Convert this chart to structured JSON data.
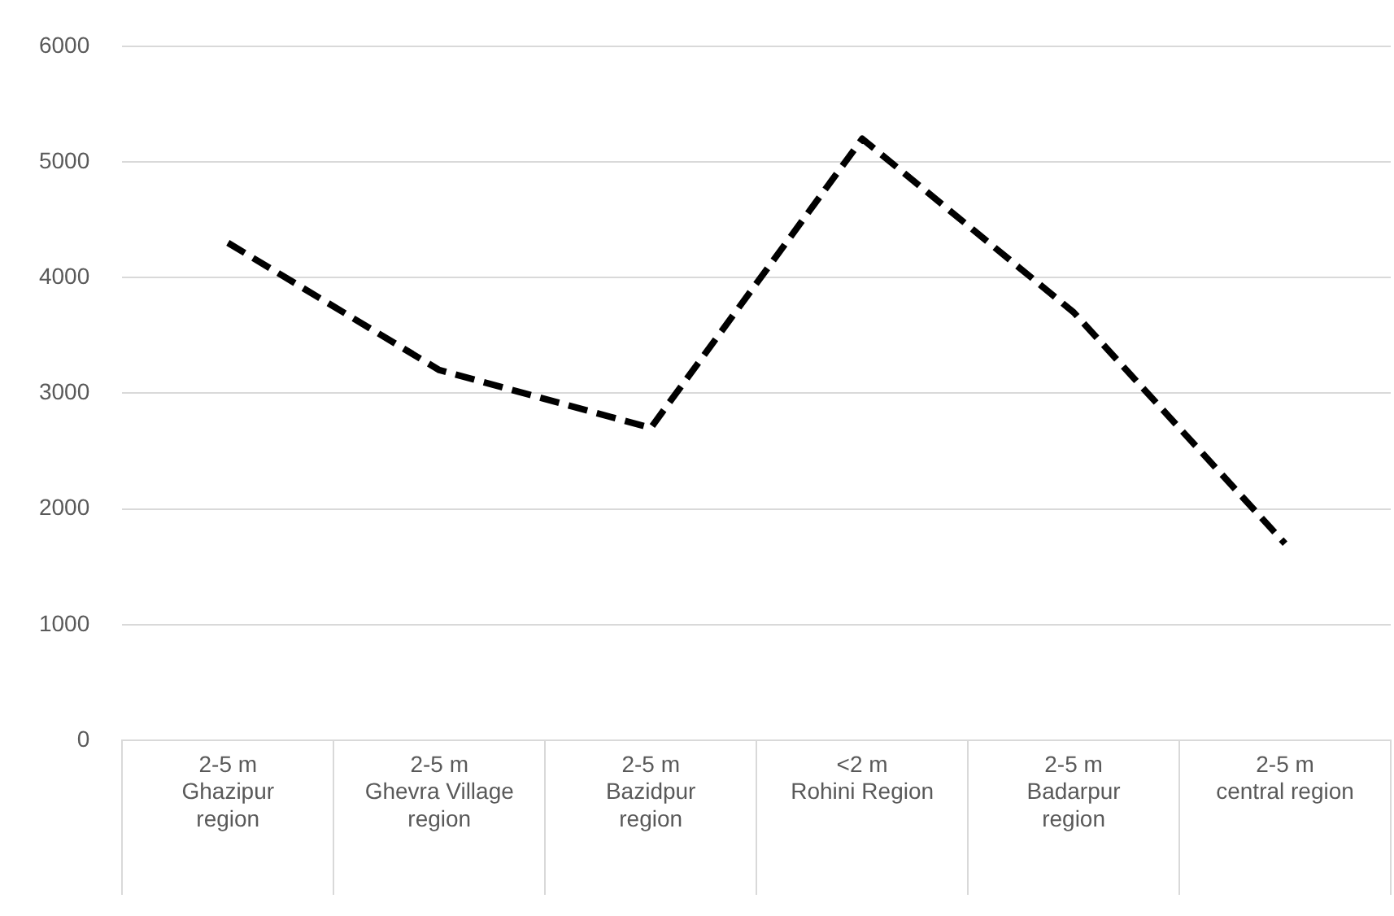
{
  "chart_data": {
    "type": "line",
    "categories": [
      "2-5 m\nGhazipur region",
      "2-5 m\nGhevra Village region",
      "2-5 m\nBazidpur region",
      "<2 m\nRohini Region",
      "2-5 m\nBadarpur region",
      "2-5 m\ncentral region"
    ],
    "series": [
      {
        "color": "#000000",
        "values": [
          4300,
          3200,
          2700,
          5200,
          3700,
          1700
        ]
      }
    ],
    "ylim": [
      0,
      6000
    ],
    "yticks": [
      0,
      1000,
      2000,
      3000,
      4000,
      5000,
      6000
    ],
    "grid": "y",
    "legend": false,
    "marker": "none",
    "line_style": "dashed"
  }
}
